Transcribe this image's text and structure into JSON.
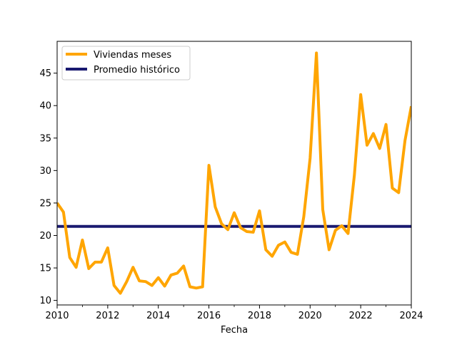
{
  "chart_data": {
    "type": "line",
    "title": "",
    "xlabel": "Fecha",
    "ylabel": "",
    "xlim": [
      2010,
      2024
    ],
    "ylim": [
      9.3,
      49.9
    ],
    "x_major_ticks": [
      2010,
      2012,
      2014,
      2016,
      2018,
      2020,
      2022,
      2024
    ],
    "x_major_tick_labels": [
      "2010",
      "2012",
      "2014",
      "2016",
      "2018",
      "2020",
      "2022",
      "2024"
    ],
    "x_minor_ticks": [
      2011,
      2013,
      2015,
      2017,
      2019,
      2021,
      2023
    ],
    "y_ticks": [
      10,
      15,
      20,
      25,
      30,
      35,
      40,
      45
    ],
    "y_tick_labels": [
      "10",
      "15",
      "20",
      "25",
      "30",
      "35",
      "40",
      "45"
    ],
    "grid": false,
    "legend_position": "upper-left",
    "series": [
      {
        "name": "Viviendas meses",
        "color": "#ffa500",
        "kind": "line",
        "x": [
          2010.0,
          2010.25,
          2010.5,
          2010.75,
          2011.0,
          2011.25,
          2011.5,
          2011.75,
          2012.0,
          2012.25,
          2012.5,
          2012.75,
          2013.0,
          2013.25,
          2013.5,
          2013.75,
          2014.0,
          2014.25,
          2014.5,
          2014.75,
          2015.0,
          2015.25,
          2015.5,
          2015.75,
          2016.0,
          2016.25,
          2016.5,
          2016.75,
          2017.0,
          2017.25,
          2017.5,
          2017.75,
          2018.0,
          2018.25,
          2018.5,
          2018.75,
          2019.0,
          2019.25,
          2019.5,
          2019.75,
          2020.0,
          2020.25,
          2020.5,
          2020.75,
          2021.0,
          2021.25,
          2021.5,
          2021.75,
          2022.0,
          2022.25,
          2022.5,
          2022.75,
          2023.0,
          2023.25,
          2023.5,
          2023.75,
          2024.0
        ],
        "y": [
          25.0,
          23.6,
          16.6,
          15.1,
          19.3,
          14.9,
          15.9,
          15.9,
          18.1,
          12.3,
          11.1,
          12.9,
          15.1,
          13.0,
          12.9,
          12.3,
          13.5,
          12.2,
          13.9,
          14.2,
          15.3,
          12.1,
          11.9,
          12.1,
          30.8,
          24.4,
          21.8,
          20.9,
          23.5,
          21.2,
          20.6,
          20.5,
          23.8,
          17.8,
          16.8,
          18.5,
          19.0,
          17.4,
          17.1,
          22.9,
          31.9,
          48.1,
          24.0,
          17.8,
          20.8,
          21.5,
          20.3,
          29.3,
          41.7,
          33.9,
          35.7,
          33.4,
          37.1,
          27.3,
          26.6,
          34.6,
          39.9
        ]
      },
      {
        "name": "Promedio histórico",
        "color": "#191970",
        "kind": "hline",
        "value": 21.4
      }
    ]
  }
}
